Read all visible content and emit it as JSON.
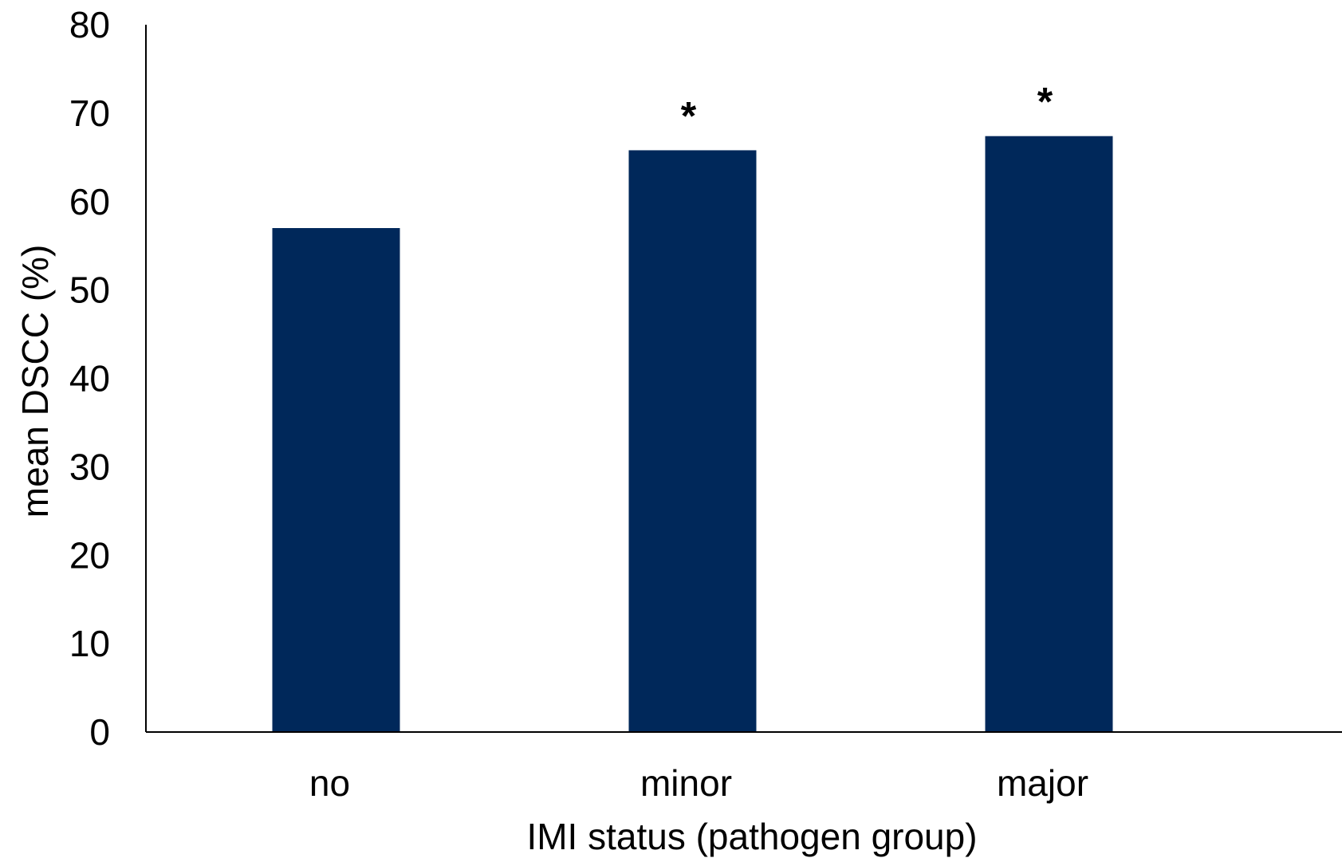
{
  "chart_data": {
    "type": "bar",
    "categories": [
      "no",
      "minor",
      "major"
    ],
    "values": [
      57,
      65.8,
      67.4
    ],
    "annotations": [
      "",
      "*",
      "*"
    ],
    "bar_color": "#00285a",
    "xlabel": "IMI status (pathogen group)",
    "ylabel": "mean DSCC (%)",
    "ylim": [
      0,
      80
    ],
    "yticks": [
      0,
      10,
      20,
      30,
      40,
      50,
      60,
      70,
      80
    ],
    "grid": false,
    "legend": "none"
  }
}
